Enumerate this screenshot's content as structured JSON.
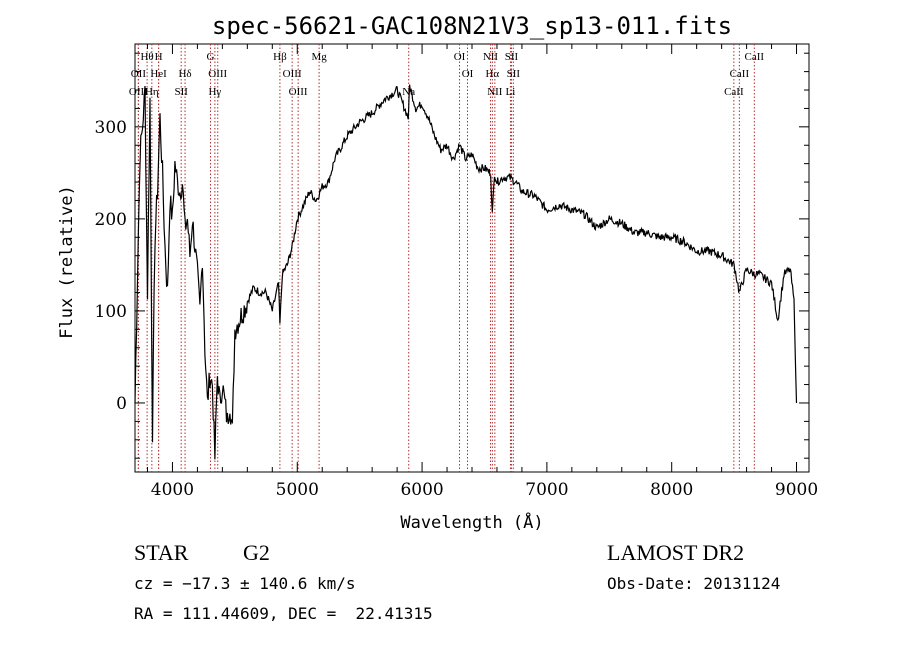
{
  "chart_data": {
    "type": "line",
    "title": "spec-56621-GAC108N21V3_sp13-011.fits",
    "xlabel": "Wavelength (Å)",
    "ylabel": "Flux (relative)",
    "xlim": [
      3700,
      9100
    ],
    "ylim": [
      -75,
      390
    ],
    "xticks": [
      4000,
      5000,
      6000,
      7000,
      8000,
      9000
    ],
    "xtick_labels": [
      "4000",
      "5000",
      "6000",
      "7000",
      "8000",
      "9000"
    ],
    "yticks": [
      0,
      100,
      200,
      300
    ],
    "ytick_labels": [
      "0",
      "100",
      "200",
      "300"
    ],
    "line_color": "#000000",
    "marker_color": "#b03030",
    "spectrum": {
      "x": [
        3700,
        3720,
        3740,
        3760,
        3780,
        3800,
        3820,
        3840,
        3860,
        3880,
        3900,
        3920,
        3940,
        3960,
        3980,
        4000,
        4020,
        4040,
        4060,
        4080,
        4100,
        4120,
        4140,
        4160,
        4180,
        4200,
        4220,
        4240,
        4260,
        4280,
        4300,
        4320,
        4340,
        4360,
        4380,
        4400,
        4420,
        4440,
        4460,
        4480,
        4500,
        4550,
        4600,
        4650,
        4700,
        4750,
        4800,
        4850,
        4861,
        4880,
        4920,
        4960,
        5000,
        5050,
        5100,
        5150,
        5200,
        5250,
        5300,
        5400,
        5500,
        5600,
        5700,
        5800,
        5890,
        5900,
        5950,
        6000,
        6050,
        6100,
        6150,
        6200,
        6250,
        6300,
        6350,
        6400,
        6450,
        6500,
        6550,
        6563,
        6580,
        6600,
        6650,
        6700,
        6750,
        6800,
        6900,
        7000,
        7100,
        7200,
        7300,
        7400,
        7500,
        7600,
        7700,
        7800,
        7900,
        8000,
        8100,
        8200,
        8300,
        8400,
        8500,
        8542,
        8600,
        8662,
        8700,
        8800,
        8850,
        8900,
        8950,
        8980,
        9000
      ],
      "y": [
        0,
        140,
        270,
        300,
        340,
        120,
        330,
        -30,
        180,
        230,
        310,
        250,
        170,
        120,
        220,
        200,
        260,
        240,
        230,
        240,
        190,
        200,
        160,
        200,
        170,
        140,
        100,
        160,
        60,
        0,
        30,
        20,
        -60,
        30,
        0,
        20,
        0,
        -20,
        0,
        -30,
        80,
        95,
        110,
        125,
        120,
        120,
        100,
        130,
        85,
        140,
        150,
        170,
        200,
        215,
        230,
        220,
        235,
        240,
        265,
        290,
        305,
        315,
        330,
        340,
        310,
        345,
        320,
        325,
        310,
        290,
        275,
        280,
        265,
        280,
        265,
        270,
        255,
        255,
        250,
        205,
        250,
        240,
        245,
        245,
        240,
        230,
        225,
        210,
        215,
        210,
        205,
        190,
        200,
        195,
        185,
        185,
        180,
        180,
        175,
        165,
        165,
        160,
        150,
        120,
        145,
        140,
        140,
        130,
        90,
        140,
        145,
        110,
        0
      ]
    },
    "line_ids": [
      {
        "label": "Hθ",
        "x": 3797,
        "row": 1
      },
      {
        "label": "OII",
        "x": 3727,
        "row": 2
      },
      {
        "label": "OIII",
        "x": 3727,
        "row": 3
      },
      {
        "label": "H",
        "x": 3889,
        "row": 1
      },
      {
        "label": "HeI",
        "x": 3889,
        "row": 2
      },
      {
        "label": "Hη",
        "x": 3835,
        "row": 3
      },
      {
        "label": "Hδ",
        "x": 4101,
        "row": 2
      },
      {
        "label": "SII",
        "x": 4070,
        "row": 3
      },
      {
        "label": "G",
        "x": 4305,
        "row": 1
      },
      {
        "label": "OIII",
        "x": 4363,
        "row": 2
      },
      {
        "label": "Hγ",
        "x": 4340,
        "row": 3
      },
      {
        "label": "Hβ",
        "x": 4861,
        "row": 1
      },
      {
        "label": "OIII",
        "x": 4959,
        "row": 2
      },
      {
        "label": "OIII",
        "x": 5007,
        "row": 3
      },
      {
        "label": "Mg",
        "x": 5175,
        "row": 1
      },
      {
        "label": "Na",
        "x": 5893,
        "row": 3
      },
      {
        "label": "OI",
        "x": 6300,
        "row": 1
      },
      {
        "label": "OI",
        "x": 6364,
        "row": 2
      },
      {
        "label": "NII",
        "x": 6548,
        "row": 1
      },
      {
        "label": "Hα",
        "x": 6563,
        "row": 2
      },
      {
        "label": "NII",
        "x": 6583,
        "row": 3
      },
      {
        "label": "SII",
        "x": 6716,
        "row": 1
      },
      {
        "label": "SII",
        "x": 6731,
        "row": 2
      },
      {
        "label": "Li",
        "x": 6708,
        "row": 3
      },
      {
        "label": "CaII",
        "x": 8662,
        "row": 1
      },
      {
        "label": "CaII",
        "x": 8542,
        "row": 2
      },
      {
        "label": "CaII",
        "x": 8498,
        "row": 3
      }
    ]
  },
  "info": {
    "object_class": "STAR",
    "subclass": "G2",
    "survey": "LAMOST DR2",
    "cz": "cz = −17.3 ± 140.6 km/s",
    "obs_date": "Obs-Date: 20131124",
    "coords": "RA = 111.44609, DEC =  22.41315"
  }
}
